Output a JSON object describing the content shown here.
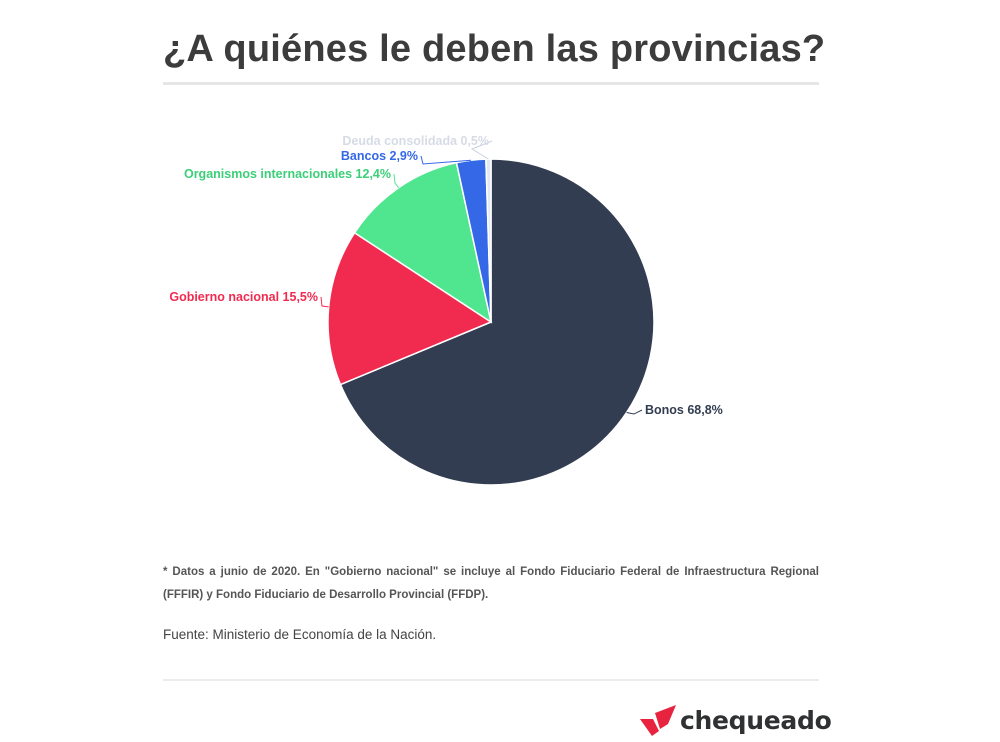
{
  "title": "¿A quiénes le deben las provincias?",
  "chart_data": {
    "type": "pie",
    "title": "¿A quiénes le deben las provincias?",
    "slices": [
      {
        "name": "Bonos",
        "value": 68.8,
        "label": "Bonos 68,8%",
        "color": "#333d51"
      },
      {
        "name": "Gobierno nacional",
        "value": 15.5,
        "label": "Gobierno nacional 15,5%",
        "color": "#f12b50"
      },
      {
        "name": "Organismos internacionales",
        "value": 12.4,
        "label": "Organismos internacionales 12,4%",
        "color": "#4fe68f"
      },
      {
        "name": "Bancos",
        "value": 2.9,
        "label": "Bancos 2,9%",
        "color": "#3468e6"
      },
      {
        "name": "Deuda consolidada",
        "value": 0.5,
        "label": "Deuda consolidada 0,5%",
        "color": "#e3e9f3"
      }
    ]
  },
  "footnote": "* Datos a junio de 2020. En \"Gobierno nacional\" se incluye al Fondo Fiduciario Federal de Infraestructura Regional (FFFIR) y Fondo Fiduciario de Desarrollo Provincial (FFDP).",
  "source": "Fuente: Ministerio de Economía de la Nación.",
  "brand": {
    "name": "chequeado",
    "color": "#e8233f"
  }
}
